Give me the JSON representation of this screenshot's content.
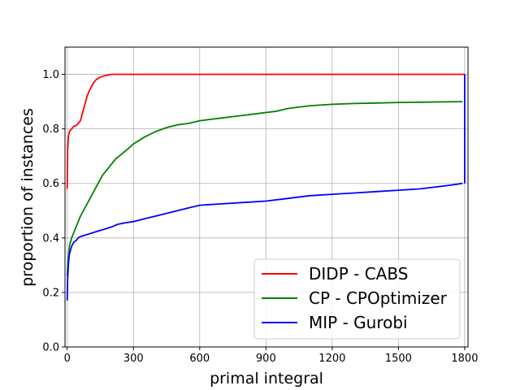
{
  "chart_data": {
    "type": "line",
    "title": "",
    "xlabel": "primal integral",
    "ylabel": "proportion of instances",
    "xlim": [
      -10,
      1815
    ],
    "ylim": [
      0.0,
      1.1
    ],
    "x_ticks": [
      0,
      300,
      600,
      900,
      1200,
      1500,
      1800
    ],
    "y_ticks": [
      0.0,
      0.2,
      0.4,
      0.6,
      0.8,
      1.0
    ],
    "x_tick_labels": [
      "0",
      "300",
      "600",
      "900",
      "1200",
      "1500",
      "1800"
    ],
    "y_tick_labels": [
      "0.0",
      "0.2",
      "0.4",
      "0.6",
      "0.8",
      "1.0"
    ],
    "grid": true,
    "legend_position": "bottom-right",
    "series": [
      {
        "name": "DIDP - CABS",
        "color": "#ff0000",
        "x": [
          0,
          2,
          5,
          10,
          20,
          30,
          40,
          50,
          60,
          70,
          80,
          90,
          100,
          110,
          120,
          130,
          150,
          170,
          200,
          250,
          400,
          800,
          1200,
          1600,
          1800
        ],
        "y": [
          0.58,
          0.72,
          0.77,
          0.79,
          0.8,
          0.81,
          0.812,
          0.82,
          0.83,
          0.86,
          0.89,
          0.92,
          0.94,
          0.955,
          0.97,
          0.98,
          0.99,
          0.995,
          1.0,
          1.0,
          1.0,
          1.0,
          1.0,
          1.0,
          1.0
        ]
      },
      {
        "name": "CP - CPOptimizer",
        "color": "#008000",
        "x": [
          0,
          5,
          10,
          20,
          30,
          40,
          50,
          60,
          80,
          100,
          120,
          140,
          160,
          180,
          200,
          220,
          250,
          280,
          300,
          350,
          400,
          450,
          500,
          550,
          600,
          650,
          700,
          750,
          800,
          850,
          900,
          950,
          1000,
          1100,
          1200,
          1300,
          1400,
          1500,
          1600,
          1700,
          1790
        ],
        "y": [
          0.26,
          0.33,
          0.37,
          0.4,
          0.42,
          0.44,
          0.46,
          0.48,
          0.51,
          0.54,
          0.57,
          0.6,
          0.63,
          0.65,
          0.67,
          0.69,
          0.71,
          0.73,
          0.745,
          0.77,
          0.79,
          0.805,
          0.815,
          0.82,
          0.83,
          0.835,
          0.84,
          0.845,
          0.85,
          0.855,
          0.86,
          0.865,
          0.875,
          0.885,
          0.89,
          0.893,
          0.895,
          0.897,
          0.898,
          0.899,
          0.9
        ]
      },
      {
        "name": "MIP - Gurobi",
        "color": "#0000ff",
        "x": [
          0,
          2,
          5,
          10,
          20,
          30,
          40,
          50,
          60,
          80,
          100,
          120,
          140,
          160,
          180,
          200,
          230,
          260,
          300,
          350,
          400,
          450,
          500,
          550,
          600,
          700,
          800,
          900,
          1000,
          1100,
          1200,
          1300,
          1400,
          1500,
          1600,
          1700,
          1750,
          1790
        ],
        "y": [
          0.17,
          0.25,
          0.3,
          0.34,
          0.37,
          0.385,
          0.39,
          0.4,
          0.405,
          0.41,
          0.415,
          0.42,
          0.425,
          0.43,
          0.435,
          0.44,
          0.45,
          0.455,
          0.46,
          0.47,
          0.48,
          0.49,
          0.5,
          0.51,
          0.52,
          0.525,
          0.53,
          0.535,
          0.545,
          0.555,
          0.56,
          0.565,
          0.57,
          0.575,
          0.58,
          0.59,
          0.595,
          0.6
        ]
      }
    ],
    "vertical_segment": {
      "color": "#0000ff",
      "x": 1800,
      "y": [
        0.6,
        1.0
      ]
    }
  }
}
